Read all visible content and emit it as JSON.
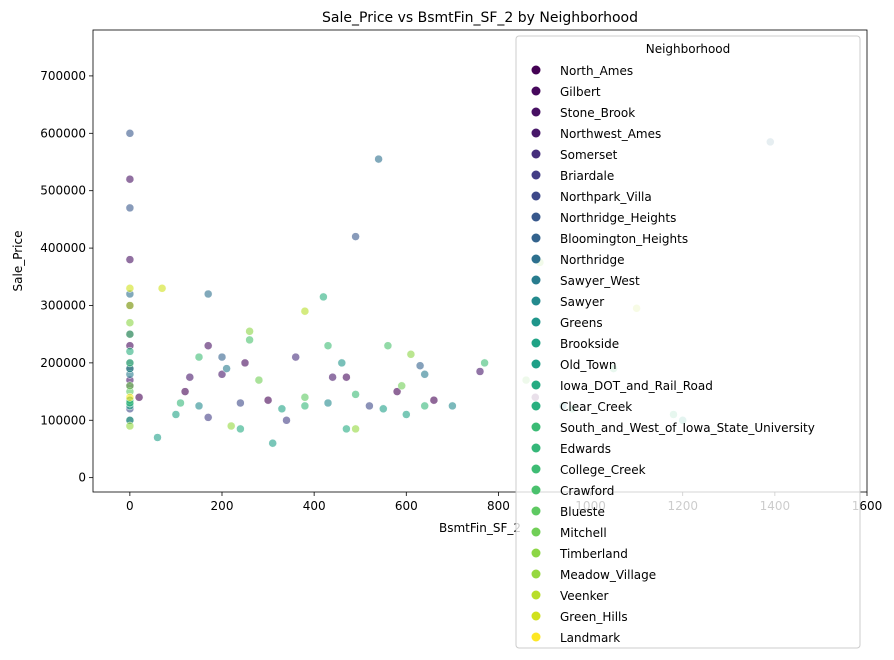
{
  "chart_data": {
    "type": "scatter",
    "title": "Sale_Price vs BsmtFin_SF_2 by Neighborhood",
    "xlabel": "BsmtFin_SF_2",
    "ylabel": "Sale_Price",
    "xlim": [
      -80,
      1600
    ],
    "ylim": [
      -25000,
      780000
    ],
    "xticks": [
      0,
      200,
      400,
      600,
      800,
      1000,
      1200,
      1400,
      1600
    ],
    "yticks": [
      0,
      100000,
      200000,
      300000,
      400000,
      500000,
      600000,
      700000
    ],
    "grid": false,
    "legend": {
      "title": "Neighborhood",
      "placement": "upper-right"
    },
    "series": [
      {
        "name": "North_Ames",
        "color": "#440154",
        "points": [
          [
            0,
            160000
          ],
          [
            120,
            150000
          ],
          [
            300,
            135000
          ],
          [
            580,
            150000
          ],
          [
            660,
            135000
          ],
          [
            880,
            140000
          ],
          [
            20,
            140000
          ]
        ]
      },
      {
        "name": "Gilbert",
        "color": "#46085c",
        "points": [
          [
            0,
            190000
          ],
          [
            250,
            200000
          ],
          [
            470,
            175000
          ],
          [
            0,
            230000
          ]
        ]
      },
      {
        "name": "Stone_Brook",
        "color": "#471063",
        "points": [
          [
            0,
            520000
          ],
          [
            170,
            230000
          ],
          [
            0,
            380000
          ]
        ]
      },
      {
        "name": "Northwest_Ames",
        "color": "#48186a",
        "points": [
          [
            0,
            170000
          ],
          [
            200,
            180000
          ],
          [
            440,
            175000
          ],
          [
            760,
            185000
          ],
          [
            130,
            175000
          ]
        ]
      },
      {
        "name": "Somerset",
        "color": "#472f7d",
        "points": [
          [
            0,
            250000
          ],
          [
            360,
            210000
          ],
          [
            0,
            300000
          ]
        ]
      },
      {
        "name": "Briardale",
        "color": "#433e85",
        "points": [
          [
            0,
            100000
          ],
          [
            170,
            105000
          ],
          [
            340,
            100000
          ]
        ]
      },
      {
        "name": "Northpark_Villa",
        "color": "#3e4989",
        "points": [
          [
            0,
            120000
          ],
          [
            240,
            130000
          ],
          [
            520,
            125000
          ]
        ]
      },
      {
        "name": "Northridge_Heights",
        "color": "#38588c",
        "points": [
          [
            0,
            600000
          ],
          [
            0,
            470000
          ],
          [
            490,
            420000
          ]
        ]
      },
      {
        "name": "Bloomington_Heights",
        "color": "#33638d",
        "points": [
          [
            0,
            200000
          ],
          [
            200,
            210000
          ],
          [
            630,
            195000
          ]
        ]
      },
      {
        "name": "Northridge",
        "color": "#2d708e",
        "points": [
          [
            0,
            320000
          ],
          [
            170,
            320000
          ],
          [
            540,
            555000
          ],
          [
            1390,
            585000
          ]
        ]
      },
      {
        "name": "Sawyer_West",
        "color": "#287c8e",
        "points": [
          [
            0,
            180000
          ],
          [
            210,
            190000
          ],
          [
            640,
            180000
          ]
        ]
      },
      {
        "name": "Sawyer",
        "color": "#238a8d",
        "points": [
          [
            0,
            135000
          ],
          [
            150,
            125000
          ],
          [
            430,
            130000
          ],
          [
            700,
            125000
          ],
          [
            940,
            125000
          ]
        ]
      },
      {
        "name": "Greens",
        "color": "#1f968b",
        "points": [
          [
            0,
            190000
          ],
          [
            460,
            200000
          ]
        ]
      },
      {
        "name": "Brookside",
        "color": "#20a386",
        "points": [
          [
            0,
            125000
          ],
          [
            100,
            110000
          ],
          [
            330,
            120000
          ],
          [
            600,
            110000
          ],
          [
            1200,
            100000
          ]
        ]
      },
      {
        "name": "Old_Town",
        "color": "#1fa088",
        "points": [
          [
            0,
            130000
          ],
          [
            60,
            70000
          ],
          [
            310,
            60000
          ],
          [
            550,
            120000
          ]
        ]
      },
      {
        "name": "Iowa_DOT_and_Rail_Road",
        "color": "#25ab82",
        "points": [
          [
            0,
            100000
          ],
          [
            240,
            85000
          ],
          [
            470,
            85000
          ]
        ]
      },
      {
        "name": "Clear_Creek",
        "color": "#29af7f",
        "points": [
          [
            0,
            220000
          ],
          [
            420,
            315000
          ]
        ]
      },
      {
        "name": "South_and_West_of_Iowa_State_University",
        "color": "#3bbb75",
        "points": [
          [
            0,
            135000
          ],
          [
            490,
            145000
          ]
        ]
      },
      {
        "name": "Edwards",
        "color": "#35b779",
        "points": [
          [
            0,
            130000
          ],
          [
            110,
            130000
          ],
          [
            380,
            125000
          ],
          [
            640,
            125000
          ],
          [
            960,
            120000
          ],
          [
            1180,
            110000
          ]
        ]
      },
      {
        "name": "College_Creek",
        "color": "#3ebc74",
        "points": [
          [
            0,
            200000
          ],
          [
            150,
            210000
          ],
          [
            430,
            230000
          ],
          [
            770,
            200000
          ],
          [
            1050,
            190000
          ]
        ]
      },
      {
        "name": "Crawford",
        "color": "#4ac16d",
        "points": [
          [
            0,
            250000
          ],
          [
            260,
            240000
          ],
          [
            560,
            230000
          ]
        ]
      },
      {
        "name": "Blueste",
        "color": "#5ec962",
        "points": [
          [
            0,
            150000
          ],
          [
            380,
            140000
          ]
        ]
      },
      {
        "name": "Mitchell",
        "color": "#71cf57",
        "points": [
          [
            0,
            160000
          ],
          [
            280,
            170000
          ],
          [
            590,
            160000
          ],
          [
            860,
            170000
          ]
        ]
      },
      {
        "name": "Timberland",
        "color": "#8cd646",
        "points": [
          [
            0,
            270000
          ],
          [
            260,
            255000
          ],
          [
            610,
            215000
          ],
          [
            890,
            375000
          ]
        ]
      },
      {
        "name": "Meadow_Village",
        "color": "#95d840",
        "points": [
          [
            0,
            90000
          ],
          [
            220,
            90000
          ],
          [
            490,
            85000
          ]
        ]
      },
      {
        "name": "Veenker",
        "color": "#b8de29",
        "points": [
          [
            0,
            300000
          ],
          [
            380,
            290000
          ],
          [
            1100,
            295000
          ]
        ]
      },
      {
        "name": "Green_Hills",
        "color": "#d0e11c",
        "points": [
          [
            0,
            330000
          ],
          [
            70,
            330000
          ]
        ]
      },
      {
        "name": "Landmark",
        "color": "#fde725",
        "points": [
          [
            0,
            140000
          ]
        ]
      }
    ]
  }
}
